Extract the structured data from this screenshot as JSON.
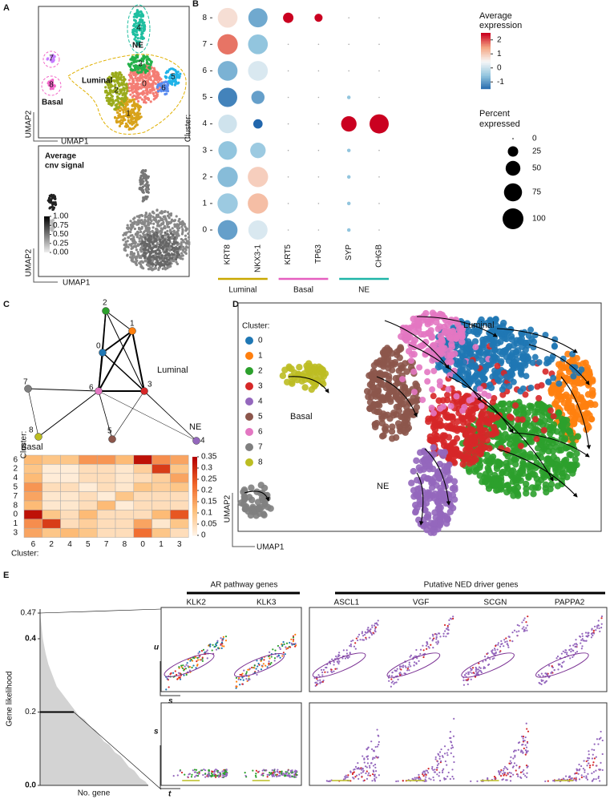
{
  "panel_labels": [
    "A",
    "B",
    "C",
    "D",
    "E"
  ],
  "umap_a": {
    "clusters": [
      "0",
      "1",
      "2",
      "3",
      "4",
      "5",
      "6",
      "7",
      "8"
    ],
    "colors": [
      "#f47d74",
      "#d8a21a",
      "#9aab1c",
      "#23b14a",
      "#1fbfa0",
      "#20b3e8",
      "#5a8cf0",
      "#c77cff",
      "#f266c8"
    ],
    "regions": [
      "NE",
      "Luminal",
      "Basal"
    ],
    "xlabel": "UMAP1",
    "ylabel": "UMAP2"
  },
  "cnv": {
    "title": [
      "Average",
      "cnv signal"
    ],
    "colorbar_ticks": [
      {
        "value": 1,
        "label": "1.00"
      },
      {
        "value": 0.75,
        "label": "0.75"
      },
      {
        "value": 0.5,
        "label": "0.50"
      },
      {
        "value": 0.25,
        "label": "0.25"
      },
      {
        "value": 0,
        "label": "0.00"
      }
    ],
    "xlabel": "UMAP1",
    "ylabel": "UMAP2"
  },
  "chart_data": [
    {
      "type": "dotplot",
      "x": [
        "KRT8",
        "NKX3-1",
        "KRT5",
        "TP63",
        "SYP",
        "CHGB"
      ],
      "y": [
        "0",
        "1",
        "2",
        "3",
        "4",
        "5",
        "6",
        "7",
        "8"
      ],
      "ylabel": "Cluster:",
      "values": [
        [
          -0.9,
          0.2,
          0,
          0,
          -0.5,
          0
        ],
        [
          -0.4,
          1.2,
          0,
          0,
          -0.5,
          0
        ],
        [
          -0.6,
          1.0,
          0,
          0,
          -0.5,
          0
        ],
        [
          -0.5,
          -0.4,
          0,
          0,
          -0.5,
          0
        ],
        [
          0.1,
          -1.5,
          0,
          0,
          2.5,
          2.5
        ],
        [
          -1.2,
          -0.9,
          0,
          0,
          -0.5,
          0
        ],
        [
          -0.7,
          0.2,
          0,
          0,
          0,
          0
        ],
        [
          1.8,
          -0.5,
          0,
          0,
          0,
          0
        ],
        [
          0.8,
          -0.8,
          2.5,
          2.5,
          0,
          0
        ]
      ],
      "sizes": [
        [
          90,
          85,
          0,
          0,
          3,
          0
        ],
        [
          95,
          95,
          0,
          0,
          3,
          0
        ],
        [
          95,
          95,
          0,
          0,
          3,
          0
        ],
        [
          80,
          55,
          0,
          0,
          3,
          0
        ],
        [
          80,
          20,
          0,
          0,
          55,
          85
        ],
        [
          85,
          40,
          0,
          0,
          3,
          0
        ],
        [
          90,
          90,
          0,
          0,
          0,
          0
        ],
        [
          95,
          90,
          0,
          0,
          0,
          0
        ],
        [
          90,
          85,
          25,
          15,
          0,
          0
        ]
      ],
      "groups": [
        {
          "name": "Luminal",
          "color": "#c9a800"
        },
        {
          "name": "Basal",
          "color": "#e55fbf"
        },
        {
          "name": "NE",
          "color": "#1fb5a8"
        }
      ],
      "color_title": [
        "Average",
        "expression"
      ],
      "clim": [
        -1.5,
        2.5
      ],
      "cticks": [
        -1,
        0,
        1,
        2
      ],
      "size_title": [
        "Percent",
        "expressed"
      ],
      "size_ticks": [
        0,
        25,
        50,
        75,
        100
      ]
    },
    {
      "type": "heatmap",
      "rows": [
        "6",
        "2",
        "4",
        "5",
        "7",
        "8",
        "0",
        "1",
        "3"
      ],
      "cols": [
        "6",
        "2",
        "4",
        "5",
        "7",
        "8",
        "0",
        "1",
        "3"
      ],
      "row_label": "Cluster:",
      "col_label": "Cluster:",
      "values": [
        [
          0.12,
          0.1,
          0.1,
          0.17,
          0.17,
          0.12,
          0.33,
          0.18,
          0.15
        ],
        [
          0.1,
          0.02,
          0.02,
          0.05,
          0.05,
          0.03,
          0.08,
          0.28,
          0.1
        ],
        [
          0.12,
          0.02,
          0.02,
          0.05,
          0.05,
          0.03,
          0.05,
          0.08,
          0.15
        ],
        [
          0.17,
          0.05,
          0.05,
          0.02,
          0.05,
          0.03,
          0.1,
          0.08,
          0.1
        ],
        [
          0.15,
          0.03,
          0.03,
          0.05,
          0.02,
          0.1,
          0.05,
          0.05,
          0.05
        ],
        [
          0.12,
          0.03,
          0.03,
          0.05,
          0.12,
          0.02,
          0.05,
          0.05,
          0.05
        ],
        [
          0.33,
          0.1,
          0.05,
          0.12,
          0.05,
          0.05,
          0.05,
          0.12,
          0.25
        ],
        [
          0.18,
          0.28,
          0.05,
          0.08,
          0.05,
          0.05,
          0.15,
          0.03,
          0.1
        ],
        [
          0.15,
          0.1,
          0.12,
          0.1,
          0.05,
          0.05,
          0.22,
          0.1,
          0.05
        ]
      ],
      "clim": [
        0,
        0.35
      ],
      "cticks": [
        0,
        0.05,
        0.1,
        0.15,
        0.2,
        0.25,
        0.3,
        0.35
      ]
    },
    {
      "type": "area",
      "ylabel": "Gene likelihood",
      "xlabel": "No. gene",
      "color": "#d3d3d3",
      "ylim": [
        0,
        0.47
      ],
      "yticks": [
        {
          "value": 0,
          "label": "0.0"
        },
        {
          "value": 0.2,
          "label": "0.2"
        },
        {
          "value": 0.4,
          "label": "0.4"
        },
        0.47
      ],
      "values": [
        0.47,
        0.4,
        0.36,
        0.33,
        0.31,
        0.29,
        0.27,
        0.26,
        0.25,
        0.24,
        0.23,
        0.22,
        0.21,
        0.2,
        0.19,
        0.185,
        0.18,
        0.17,
        0.16,
        0.155,
        0.15,
        0.14,
        0.13,
        0.12,
        0.115,
        0.11,
        0.1,
        0.09,
        0.085,
        0.08,
        0.07,
        0.06,
        0.05,
        0.045,
        0.04,
        0.03,
        0.02,
        0.015,
        0.01,
        0.0
      ]
    }
  ],
  "paga": {
    "nodes": [
      "0",
      "1",
      "2",
      "3",
      "4",
      "5",
      "6",
      "7",
      "8"
    ],
    "regions": [
      "Luminal",
      "Basal",
      "NE"
    ]
  },
  "velocity": {
    "legend_title": "Cluster:",
    "clusters": [
      {
        "name": "0",
        "color": "#1f77b4"
      },
      {
        "name": "1",
        "color": "#ff7f0e"
      },
      {
        "name": "2",
        "color": "#2ca02c"
      },
      {
        "name": "3",
        "color": "#d62728"
      },
      {
        "name": "4",
        "color": "#9467bd"
      },
      {
        "name": "5",
        "color": "#8c564b"
      },
      {
        "name": "6",
        "color": "#e377c2"
      },
      {
        "name": "7",
        "color": "#7f7f7f"
      },
      {
        "name": "8",
        "color": "#bcbd22"
      }
    ],
    "regions": [
      "Luminal",
      "Basal",
      "NE"
    ],
    "xlabel": "UMAP1",
    "ylabel": "UMAP2"
  },
  "dynamics": {
    "groups": [
      {
        "title": "AR pathway genes",
        "genes": [
          "KLK2",
          "KLK3"
        ]
      },
      {
        "title": "Putative NED driver genes",
        "genes": [
          "ASCL1",
          "VGF",
          "SCGN",
          "PAPPA2"
        ]
      }
    ],
    "phase_axes": [
      "u",
      "s"
    ],
    "time_axes": [
      "s",
      "t"
    ]
  }
}
